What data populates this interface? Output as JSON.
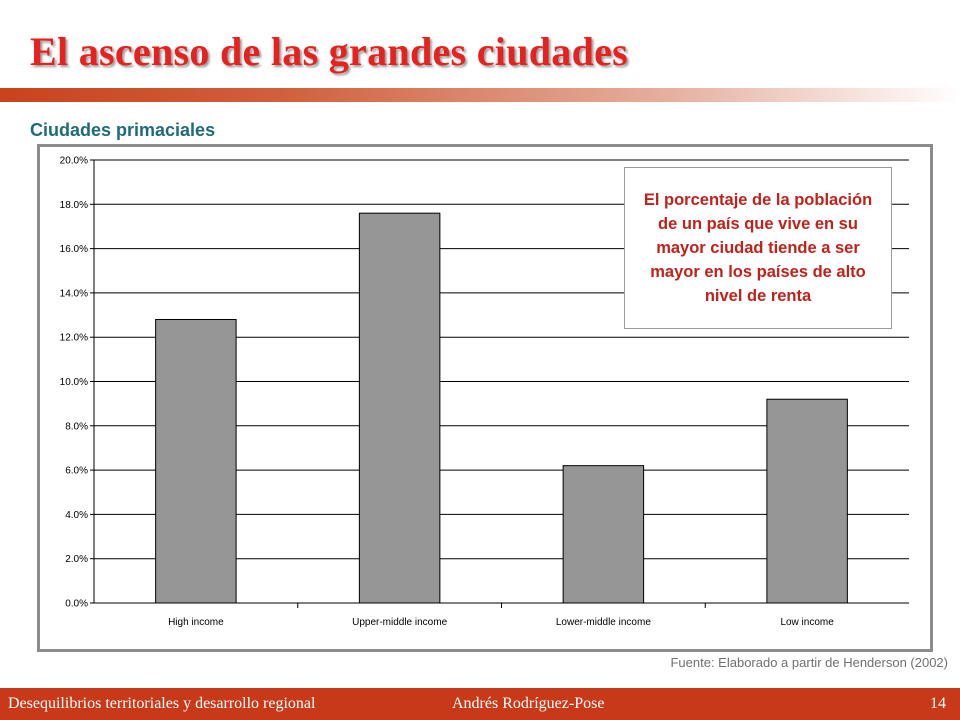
{
  "slide": {
    "title": "El ascenso de las grandes ciudades",
    "subtitle": "Ciudades primaciales",
    "callout": "El porcentaje de la población de un país que vive en su mayor ciudad tiende a ser mayor en los países de alto nivel de renta",
    "source": "Fuente:  Elaborado a partir de Henderson  (2002)",
    "footer": {
      "left": "Desequilibrios territoriales y desarrollo regional",
      "center": "Andrés  Rodríguez-Pose",
      "page": "14"
    }
  },
  "colors": {
    "title": "#e8211e",
    "subtitle": "#1f6b7a",
    "bar": "#969696",
    "callout_text": "#c0221a",
    "footer_bg": "#c8391a"
  },
  "chart_data": {
    "type": "bar",
    "categories": [
      "High income",
      "Upper-middle income",
      "Lower-middle income",
      "Low income"
    ],
    "values": [
      12.8,
      17.6,
      6.2,
      9.2
    ],
    "ylim": [
      0,
      20
    ],
    "yticks": [
      "0.0%",
      "2.0%",
      "4.0%",
      "6.0%",
      "8.0%",
      "10.0%",
      "12.0%",
      "14.0%",
      "16.0%",
      "18.0%",
      "20.0%"
    ],
    "ytick_values": [
      0,
      2,
      4,
      6,
      8,
      10,
      12,
      14,
      16,
      18,
      20
    ],
    "grid": true,
    "legend": "none"
  }
}
